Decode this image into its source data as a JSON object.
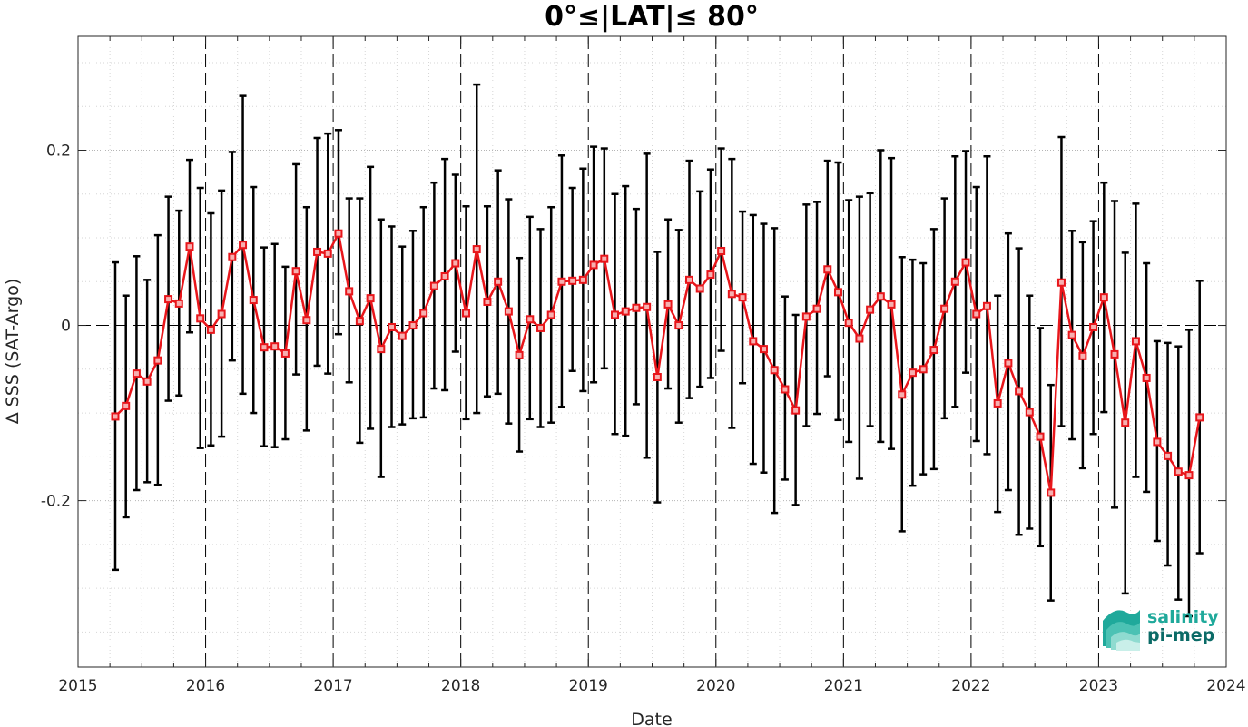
{
  "chart_data": {
    "type": "line",
    "title": "0°≤|LAT|≤ 80°",
    "xlabel": "Date",
    "ylabel": "Δ SSS (SAT-Argo)",
    "xlim": [
      2015,
      2024
    ],
    "ylim": [
      -0.39,
      0.33
    ],
    "x_ticks": [
      2015,
      2016,
      2017,
      2018,
      2019,
      2020,
      2021,
      2022,
      2023,
      2024
    ],
    "x_tick_labels": [
      "2015",
      "2016",
      "2017",
      "2018",
      "2019",
      "2020",
      "2021",
      "2022",
      "2023",
      "2024"
    ],
    "y_ticks": [
      -0.2,
      0,
      0.2
    ],
    "y_tick_labels": [
      "-0.2",
      "0",
      "0.2"
    ],
    "grid": "minor dotted, year boundaries dashed",
    "error_bar_color": "#000000",
    "series": [
      {
        "color": "#e8161b",
        "x": [
          "2015-04",
          "2015-05",
          "2015-06",
          "2015-07",
          "2015-08",
          "2015-09",
          "2015-10",
          "2015-11",
          "2015-12",
          "2016-01",
          "2016-02",
          "2016-03",
          "2016-04",
          "2016-05",
          "2016-06",
          "2016-07",
          "2016-08",
          "2016-09",
          "2016-10",
          "2016-11",
          "2016-12",
          "2017-01",
          "2017-02",
          "2017-03",
          "2017-04",
          "2017-05",
          "2017-06",
          "2017-07",
          "2017-08",
          "2017-09",
          "2017-10",
          "2017-11",
          "2017-12",
          "2018-01",
          "2018-02",
          "2018-03",
          "2018-04",
          "2018-05",
          "2018-06",
          "2018-07",
          "2018-08",
          "2018-09",
          "2018-10",
          "2018-11",
          "2018-12",
          "2019-01",
          "2019-02",
          "2019-03",
          "2019-04",
          "2019-05",
          "2019-06",
          "2019-07",
          "2019-08",
          "2019-09",
          "2019-10",
          "2019-11",
          "2019-12",
          "2020-01",
          "2020-02",
          "2020-03",
          "2020-04",
          "2020-05",
          "2020-06",
          "2020-07",
          "2020-08",
          "2020-09",
          "2020-10",
          "2020-11",
          "2020-12",
          "2021-01",
          "2021-02",
          "2021-03",
          "2021-04",
          "2021-05",
          "2021-06",
          "2021-07",
          "2021-08",
          "2021-09",
          "2021-10",
          "2021-11",
          "2021-12",
          "2022-01",
          "2022-02",
          "2022-03",
          "2022-04",
          "2022-05",
          "2022-06",
          "2022-07",
          "2022-08",
          "2022-09",
          "2022-10",
          "2022-11",
          "2022-12",
          "2023-01",
          "2023-02",
          "2023-03",
          "2023-04",
          "2023-05",
          "2023-06",
          "2023-07",
          "2023-08",
          "2023-09",
          "2023-10"
        ],
        "y": [
          -0.104,
          -0.092,
          -0.055,
          -0.064,
          -0.04,
          0.03,
          0.025,
          0.09,
          0.008,
          -0.005,
          0.013,
          0.078,
          0.092,
          0.029,
          -0.025,
          -0.024,
          -0.032,
          0.062,
          0.006,
          0.084,
          0.082,
          0.105,
          0.039,
          0.005,
          0.031,
          -0.027,
          -0.002,
          -0.012,
          0.0,
          0.014,
          0.045,
          0.056,
          0.071,
          0.014,
          0.087,
          0.027,
          0.05,
          0.016,
          -0.034,
          0.007,
          -0.003,
          0.012,
          0.05,
          0.051,
          0.052,
          0.069,
          0.076,
          0.012,
          0.016,
          0.02,
          0.021,
          -0.059,
          0.024,
          0.0,
          0.052,
          0.042,
          0.058,
          0.085,
          0.036,
          0.032,
          -0.018,
          -0.027,
          -0.051,
          -0.073,
          -0.097,
          0.01,
          0.019,
          0.064,
          0.038,
          0.003,
          -0.015,
          0.018,
          0.033,
          0.024,
          -0.079,
          -0.054,
          -0.05,
          -0.028,
          0.019,
          0.05,
          0.072,
          0.013,
          0.022,
          -0.089,
          -0.043,
          -0.075,
          -0.099,
          -0.127,
          -0.191,
          0.049,
          -0.011,
          -0.035,
          -0.002,
          0.032,
          -0.033,
          -0.111,
          -0.018,
          -0.06,
          -0.133,
          -0.149,
          -0.167,
          -0.171,
          -0.105
        ],
        "err_low": [
          -0.279,
          -0.219,
          -0.188,
          -0.179,
          -0.182,
          -0.086,
          -0.08,
          -0.008,
          -0.14,
          -0.137,
          -0.127,
          -0.04,
          -0.078,
          -0.1,
          -0.138,
          -0.139,
          -0.13,
          -0.056,
          -0.12,
          -0.046,
          -0.055,
          -0.01,
          -0.065,
          -0.134,
          -0.118,
          -0.173,
          -0.116,
          -0.113,
          -0.106,
          -0.105,
          -0.072,
          -0.074,
          -0.03,
          -0.107,
          -0.1,
          -0.081,
          -0.078,
          -0.112,
          -0.144,
          -0.107,
          -0.116,
          -0.111,
          -0.093,
          -0.052,
          -0.075,
          -0.065,
          -0.049,
          -0.124,
          -0.126,
          -0.09,
          -0.151,
          -0.202,
          -0.072,
          -0.111,
          -0.083,
          -0.07,
          -0.06,
          -0.029,
          -0.117,
          -0.066,
          -0.158,
          -0.168,
          -0.214,
          -0.176,
          -0.205,
          -0.115,
          -0.101,
          -0.058,
          -0.108,
          -0.133,
          -0.175,
          -0.115,
          -0.133,
          -0.141,
          -0.235,
          -0.183,
          -0.17,
          -0.164,
          -0.106,
          -0.093,
          -0.054,
          -0.132,
          -0.147,
          -0.213,
          -0.188,
          -0.239,
          -0.232,
          -0.252,
          -0.314,
          -0.115,
          -0.13,
          -0.163,
          -0.124,
          -0.099,
          -0.208,
          -0.306,
          -0.173,
          -0.19,
          -0.246,
          -0.274,
          -0.313,
          -0.332,
          -0.26
        ],
        "err_high": [
          0.072,
          0.034,
          0.079,
          0.052,
          0.103,
          0.147,
          0.131,
          0.189,
          0.157,
          0.128,
          0.154,
          0.198,
          0.262,
          0.158,
          0.089,
          0.093,
          0.067,
          0.184,
          0.135,
          0.214,
          0.219,
          0.223,
          0.145,
          0.145,
          0.181,
          0.121,
          0.113,
          0.09,
          0.108,
          0.135,
          0.163,
          0.19,
          0.172,
          0.136,
          0.275,
          0.136,
          0.177,
          0.144,
          0.077,
          0.124,
          0.11,
          0.135,
          0.194,
          0.157,
          0.179,
          0.204,
          0.202,
          0.15,
          0.159,
          0.133,
          0.196,
          0.084,
          0.121,
          0.109,
          0.188,
          0.153,
          0.178,
          0.202,
          0.19,
          0.13,
          0.126,
          0.116,
          0.111,
          0.033,
          0.012,
          0.138,
          0.141,
          0.188,
          0.186,
          0.143,
          0.147,
          0.151,
          0.2,
          0.191,
          0.078,
          0.075,
          0.071,
          0.11,
          0.145,
          0.193,
          0.199,
          0.158,
          0.193,
          0.034,
          0.105,
          0.088,
          0.034,
          -0.003,
          -0.068,
          0.215,
          0.108,
          0.095,
          0.119,
          0.163,
          0.142,
          0.083,
          0.139,
          0.071,
          -0.018,
          -0.02,
          -0.024,
          -0.005,
          0.051
        ]
      }
    ]
  },
  "logo": {
    "line1": "salinity",
    "line2": "pi-mep",
    "color1": "#1fa99b",
    "color2": "#0b6b67"
  }
}
